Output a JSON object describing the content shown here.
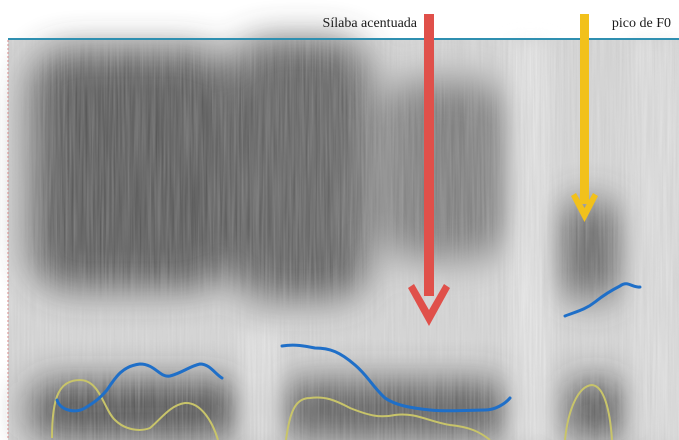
{
  "annotations": {
    "stressed_syllable_label": "Sílaba acentuada",
    "f0_peak_label": "pico de F0"
  },
  "colors": {
    "background": "#ffffff",
    "baseline": "#2f8fb0",
    "stressed_arrow": "#e0504a",
    "f0_peak_arrow": "#f2c11b",
    "pitch_contour": "#1f6fc8",
    "intensity_contour": "#c8c46a",
    "spectrogram_light": "#e6e6e6",
    "spectrogram_dark": "#2a2a2a"
  },
  "figure": {
    "type": "spectrogram with pitch and intensity contours"
  }
}
